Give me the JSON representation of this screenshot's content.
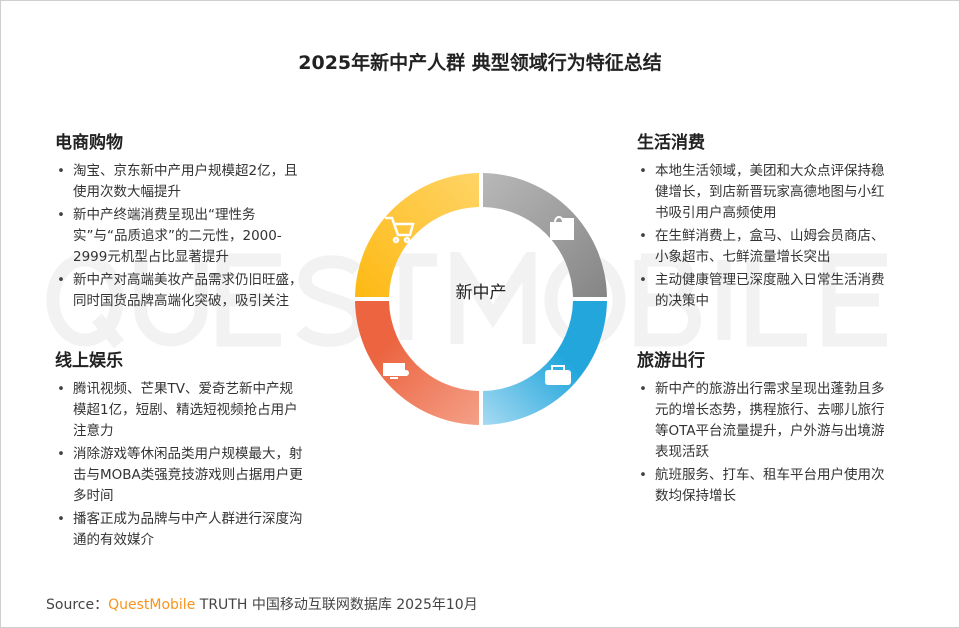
{
  "title": "2025年新中产人群 典型领域行为特征总结",
  "watermark": "QUESTMOBILE",
  "center_label": "新中产",
  "sections": {
    "ecommerce": {
      "heading": "电商购物",
      "icon": "shopping-cart-icon",
      "color": "#FDB913",
      "items": [
        "淘宝、京东新中产用户规模超2亿，且使用次数大幅提升",
        "新中产终端消费呈现出“理性务实”与“品质追求”的二元性，2000-2999元机型占比显著提升",
        "新中产对高端美妆产品需求仍旧旺盛，同时国货品牌高端化突破，吸引关注"
      ]
    },
    "local_life": {
      "heading": "生活消费",
      "icon": "shopping-bags-icon",
      "color": "#8C8C8C",
      "items": [
        "本地生活领域，美团和大众点评保持稳健增长，到店新晋玩家高德地图与小红书吸引用户高频使用",
        "在生鲜消费上，盒马、山姆会员商店、小象超市、七鲜流量增长突出",
        "主动健康管理已深度融入日常生活消费的决策中"
      ]
    },
    "entertainment": {
      "heading": "线上娱乐",
      "icon": "monitor-gamepad-icon",
      "color": "#EC6440",
      "items": [
        "腾讯视频、芒果TV、爱奇艺新中产规模超1亿，短剧、精选短视频抢占用户注意力",
        "消除游戏等休闲品类用户规模最大，射击与MOBA类强竞技游戏则占据用户更多时间",
        "播客正成为品牌与中产人群进行深度沟通的有效媒介"
      ]
    },
    "travel": {
      "heading": "旅游出行",
      "icon": "suitcase-icon",
      "color": "#22A6DC",
      "items": [
        "新中产的旅游出行需求呈现出蓬勃且多元的增长态势，携程旅行、去哪儿旅行等OTA平台流量提升，户外游与出境游表现活跃",
        "航班服务、打车、租车平台用户使用次数均保持增长"
      ]
    }
  },
  "source": {
    "label": "Source：",
    "brand": "QuestMobile",
    "text": " TRUTH 中国移动互联网数据库 2025年10月"
  }
}
